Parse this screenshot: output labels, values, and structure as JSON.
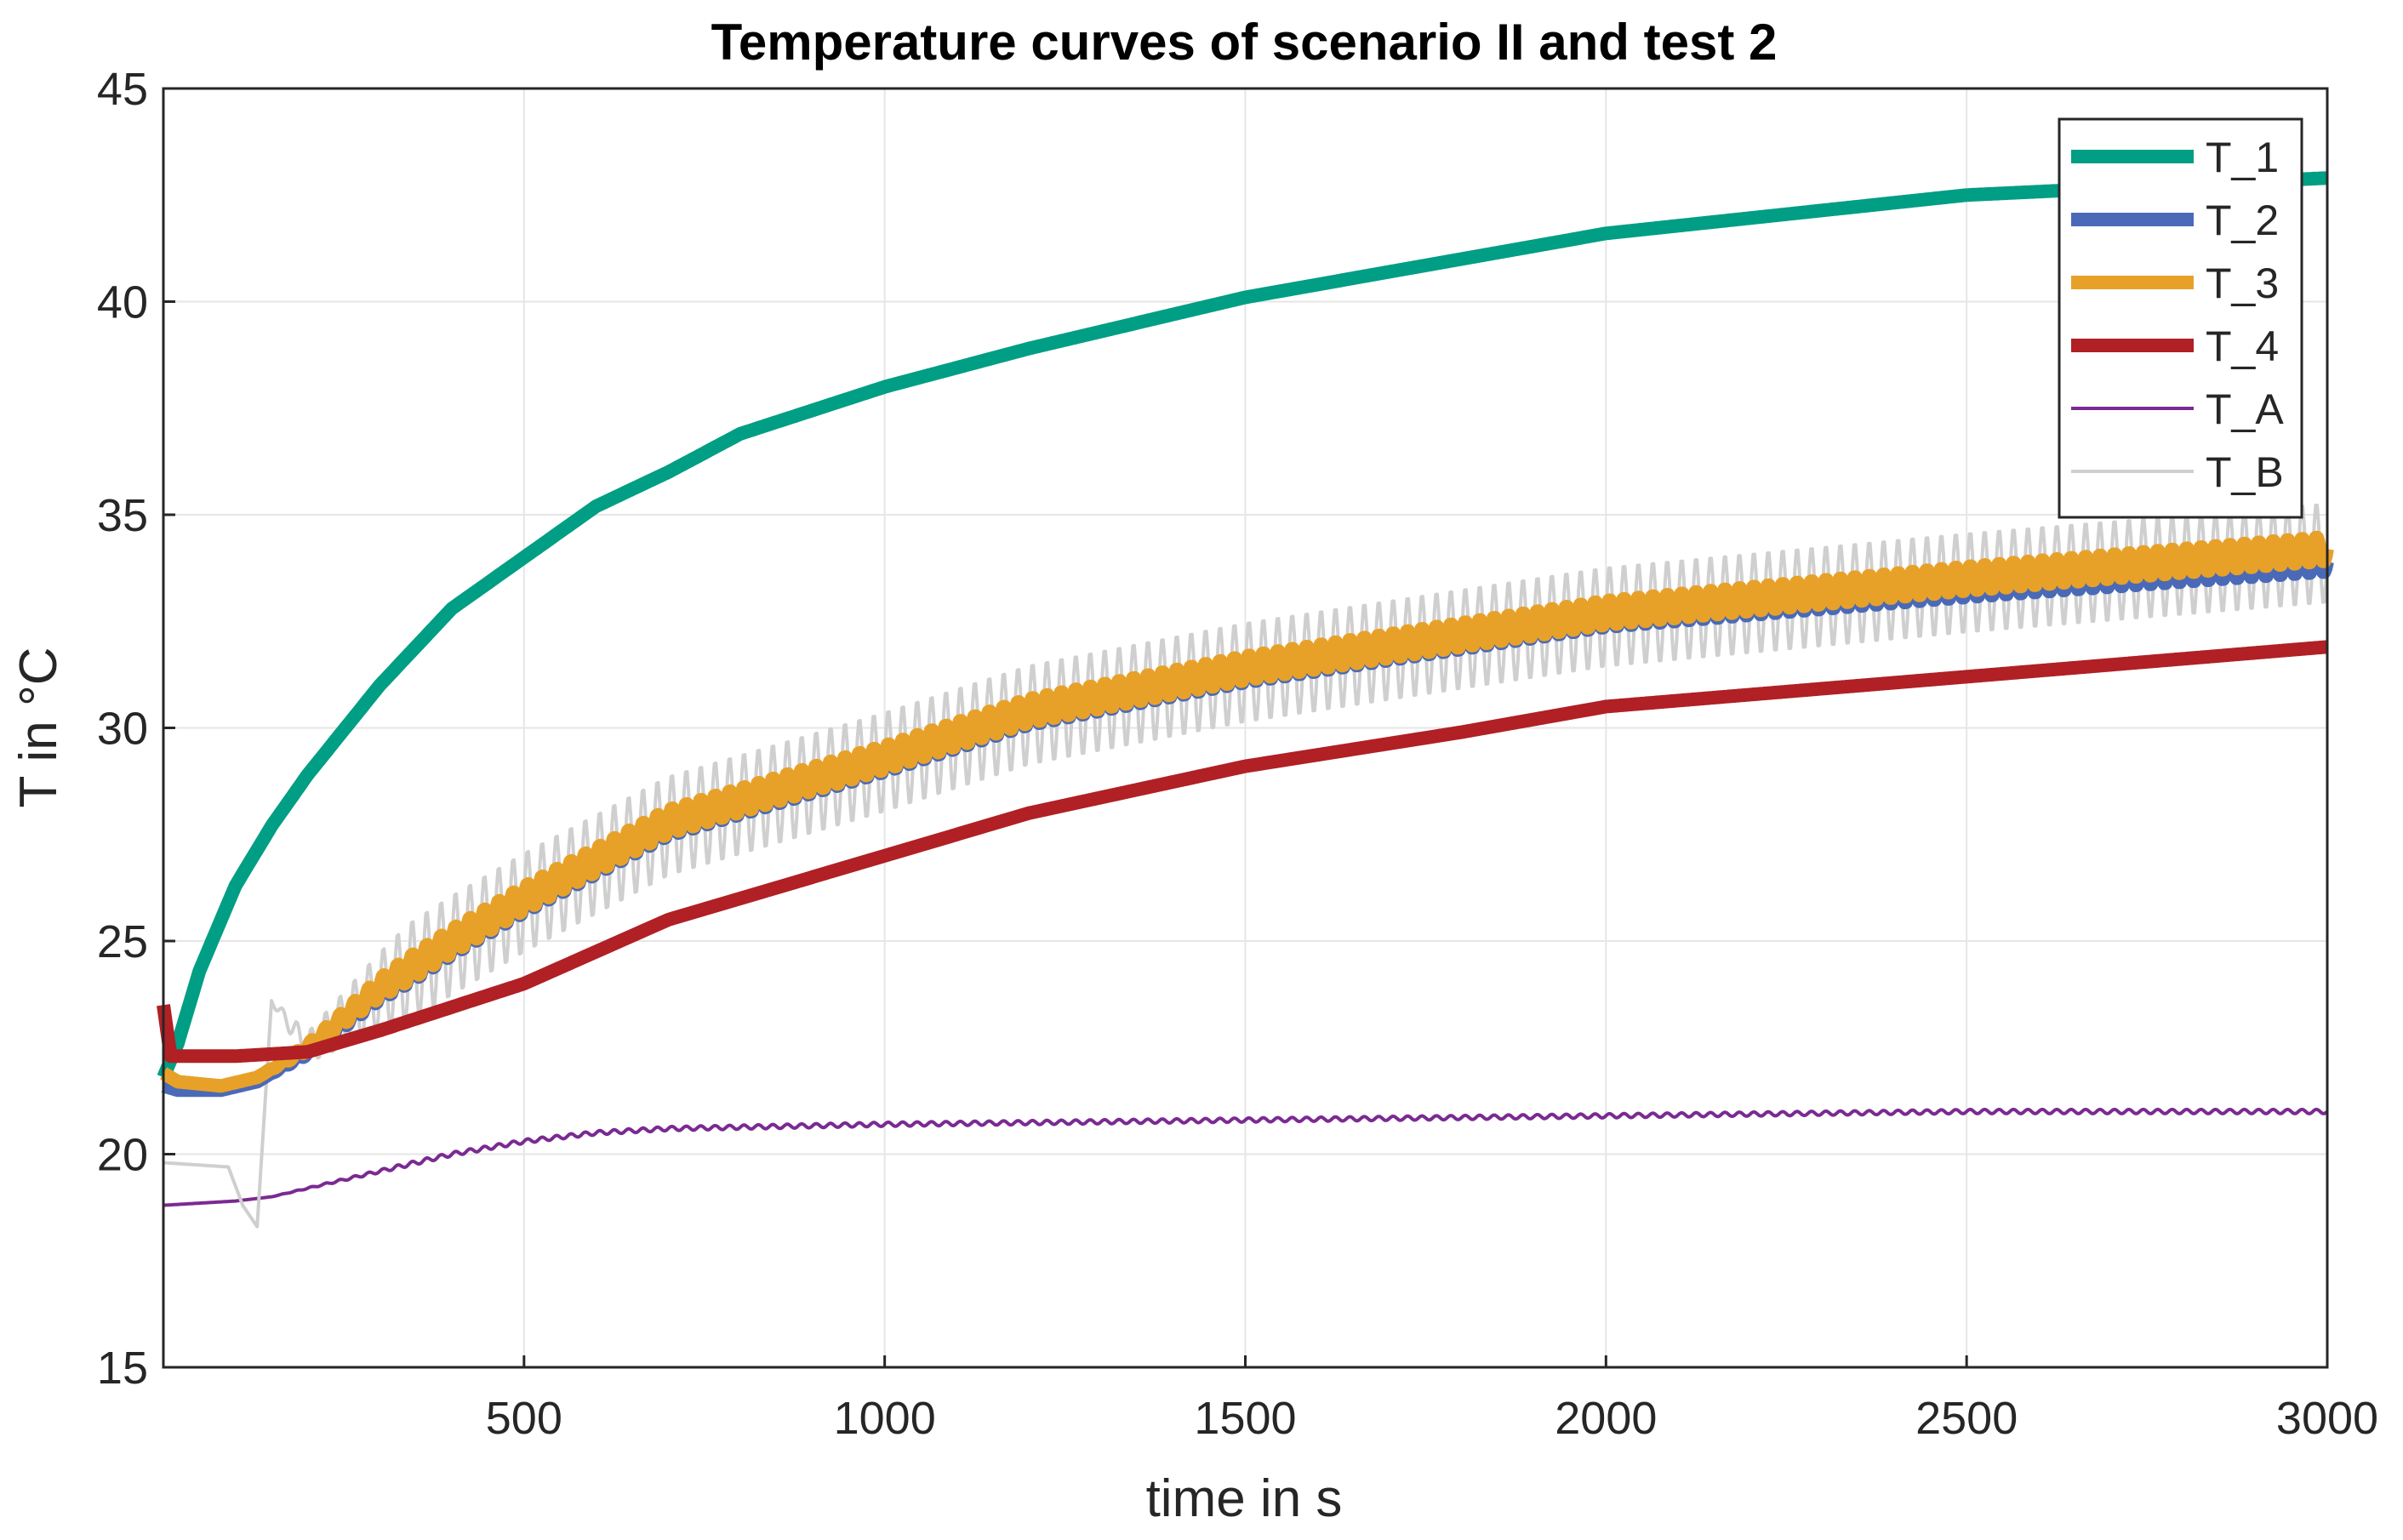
{
  "chart_data": {
    "type": "line",
    "title": "Temperature curves of scenario II and test 2",
    "xlabel": "time in s",
    "ylabel": "T in °C",
    "xlim": [
      0,
      3000
    ],
    "ylim": [
      15,
      45
    ],
    "xticks": [
      500,
      1000,
      1500,
      2000,
      2500,
      3000
    ],
    "xtick_labels": [
      "500",
      "1000",
      "1500",
      "2000",
      "2500",
      "3000"
    ],
    "yticks": [
      15,
      20,
      25,
      30,
      35,
      40,
      45
    ],
    "ytick_labels": [
      "15",
      "20",
      "25",
      "30",
      "35",
      "40",
      "45"
    ],
    "grid": true,
    "legend_position": "top-right",
    "series": [
      {
        "name": "T_1",
        "color": "#009E84",
        "weight": "thick",
        "oscillation": 0,
        "x": [
          0,
          20,
          50,
          100,
          150,
          200,
          300,
          400,
          500,
          600,
          700,
          800,
          1000,
          1200,
          1500,
          1800,
          2000,
          2500,
          3000
        ],
        "y": [
          21.8,
          22.6,
          24.3,
          26.3,
          27.7,
          28.9,
          31.0,
          32.8,
          34.0,
          35.2,
          36.0,
          36.9,
          38.0,
          38.9,
          40.1,
          41.0,
          41.6,
          42.5,
          42.9
        ]
      },
      {
        "name": "T_2",
        "color": "#4A6AB8",
        "weight": "thick",
        "oscillation": 0.25,
        "x": [
          0,
          20,
          80,
          130,
          200,
          300,
          400,
          500,
          700,
          1000,
          1200,
          1500,
          2000,
          2500,
          3000
        ],
        "y": [
          21.6,
          21.5,
          21.5,
          21.7,
          22.4,
          23.8,
          24.9,
          25.9,
          27.7,
          29.2,
          30.3,
          31.3,
          32.6,
          33.3,
          33.9
        ]
      },
      {
        "name": "T_3",
        "color": "#E8A128",
        "weight": "thick",
        "oscillation": 0.3,
        "x": [
          0,
          20,
          80,
          130,
          200,
          300,
          400,
          500,
          700,
          1000,
          1200,
          1500,
          2000,
          2500,
          3000
        ],
        "y": [
          21.9,
          21.7,
          21.6,
          21.8,
          22.5,
          23.9,
          25.0,
          26.0,
          27.8,
          29.3,
          30.4,
          31.4,
          32.7,
          33.5,
          34.2
        ]
      },
      {
        "name": "T_4",
        "color": "#B02025",
        "weight": "thick",
        "oscillation": 0,
        "x": [
          0,
          10,
          30,
          100,
          200,
          300,
          500,
          700,
          1000,
          1200,
          1500,
          1800,
          2000,
          2500,
          3000
        ],
        "y": [
          23.5,
          22.3,
          22.3,
          22.3,
          22.4,
          22.9,
          24.0,
          25.5,
          27.0,
          28.0,
          29.1,
          29.9,
          30.5,
          31.2,
          31.9
        ]
      },
      {
        "name": "T_A",
        "color": "#7B2A92",
        "weight": "thin",
        "oscillation": 0.05,
        "x": [
          0,
          100,
          150,
          200,
          300,
          400,
          500,
          600,
          700,
          1000,
          1500,
          2000,
          2500,
          3000
        ],
        "y": [
          18.8,
          18.9,
          19.0,
          19.2,
          19.6,
          20.0,
          20.3,
          20.5,
          20.6,
          20.7,
          20.8,
          20.9,
          21.0,
          21.0
        ]
      },
      {
        "name": "T_B",
        "color": "#CFCFCF",
        "weight": "thin",
        "oscillation": 1.2,
        "x": [
          0,
          90,
          110,
          130,
          150,
          200,
          300,
          400,
          500,
          700,
          1000,
          1200,
          1500,
          2000,
          2500,
          3000
        ],
        "y": [
          19.8,
          19.7,
          18.8,
          18.3,
          23.6,
          22.5,
          23.8,
          24.9,
          25.9,
          27.7,
          29.2,
          30.3,
          31.3,
          32.6,
          33.4,
          34.1
        ]
      }
    ]
  }
}
